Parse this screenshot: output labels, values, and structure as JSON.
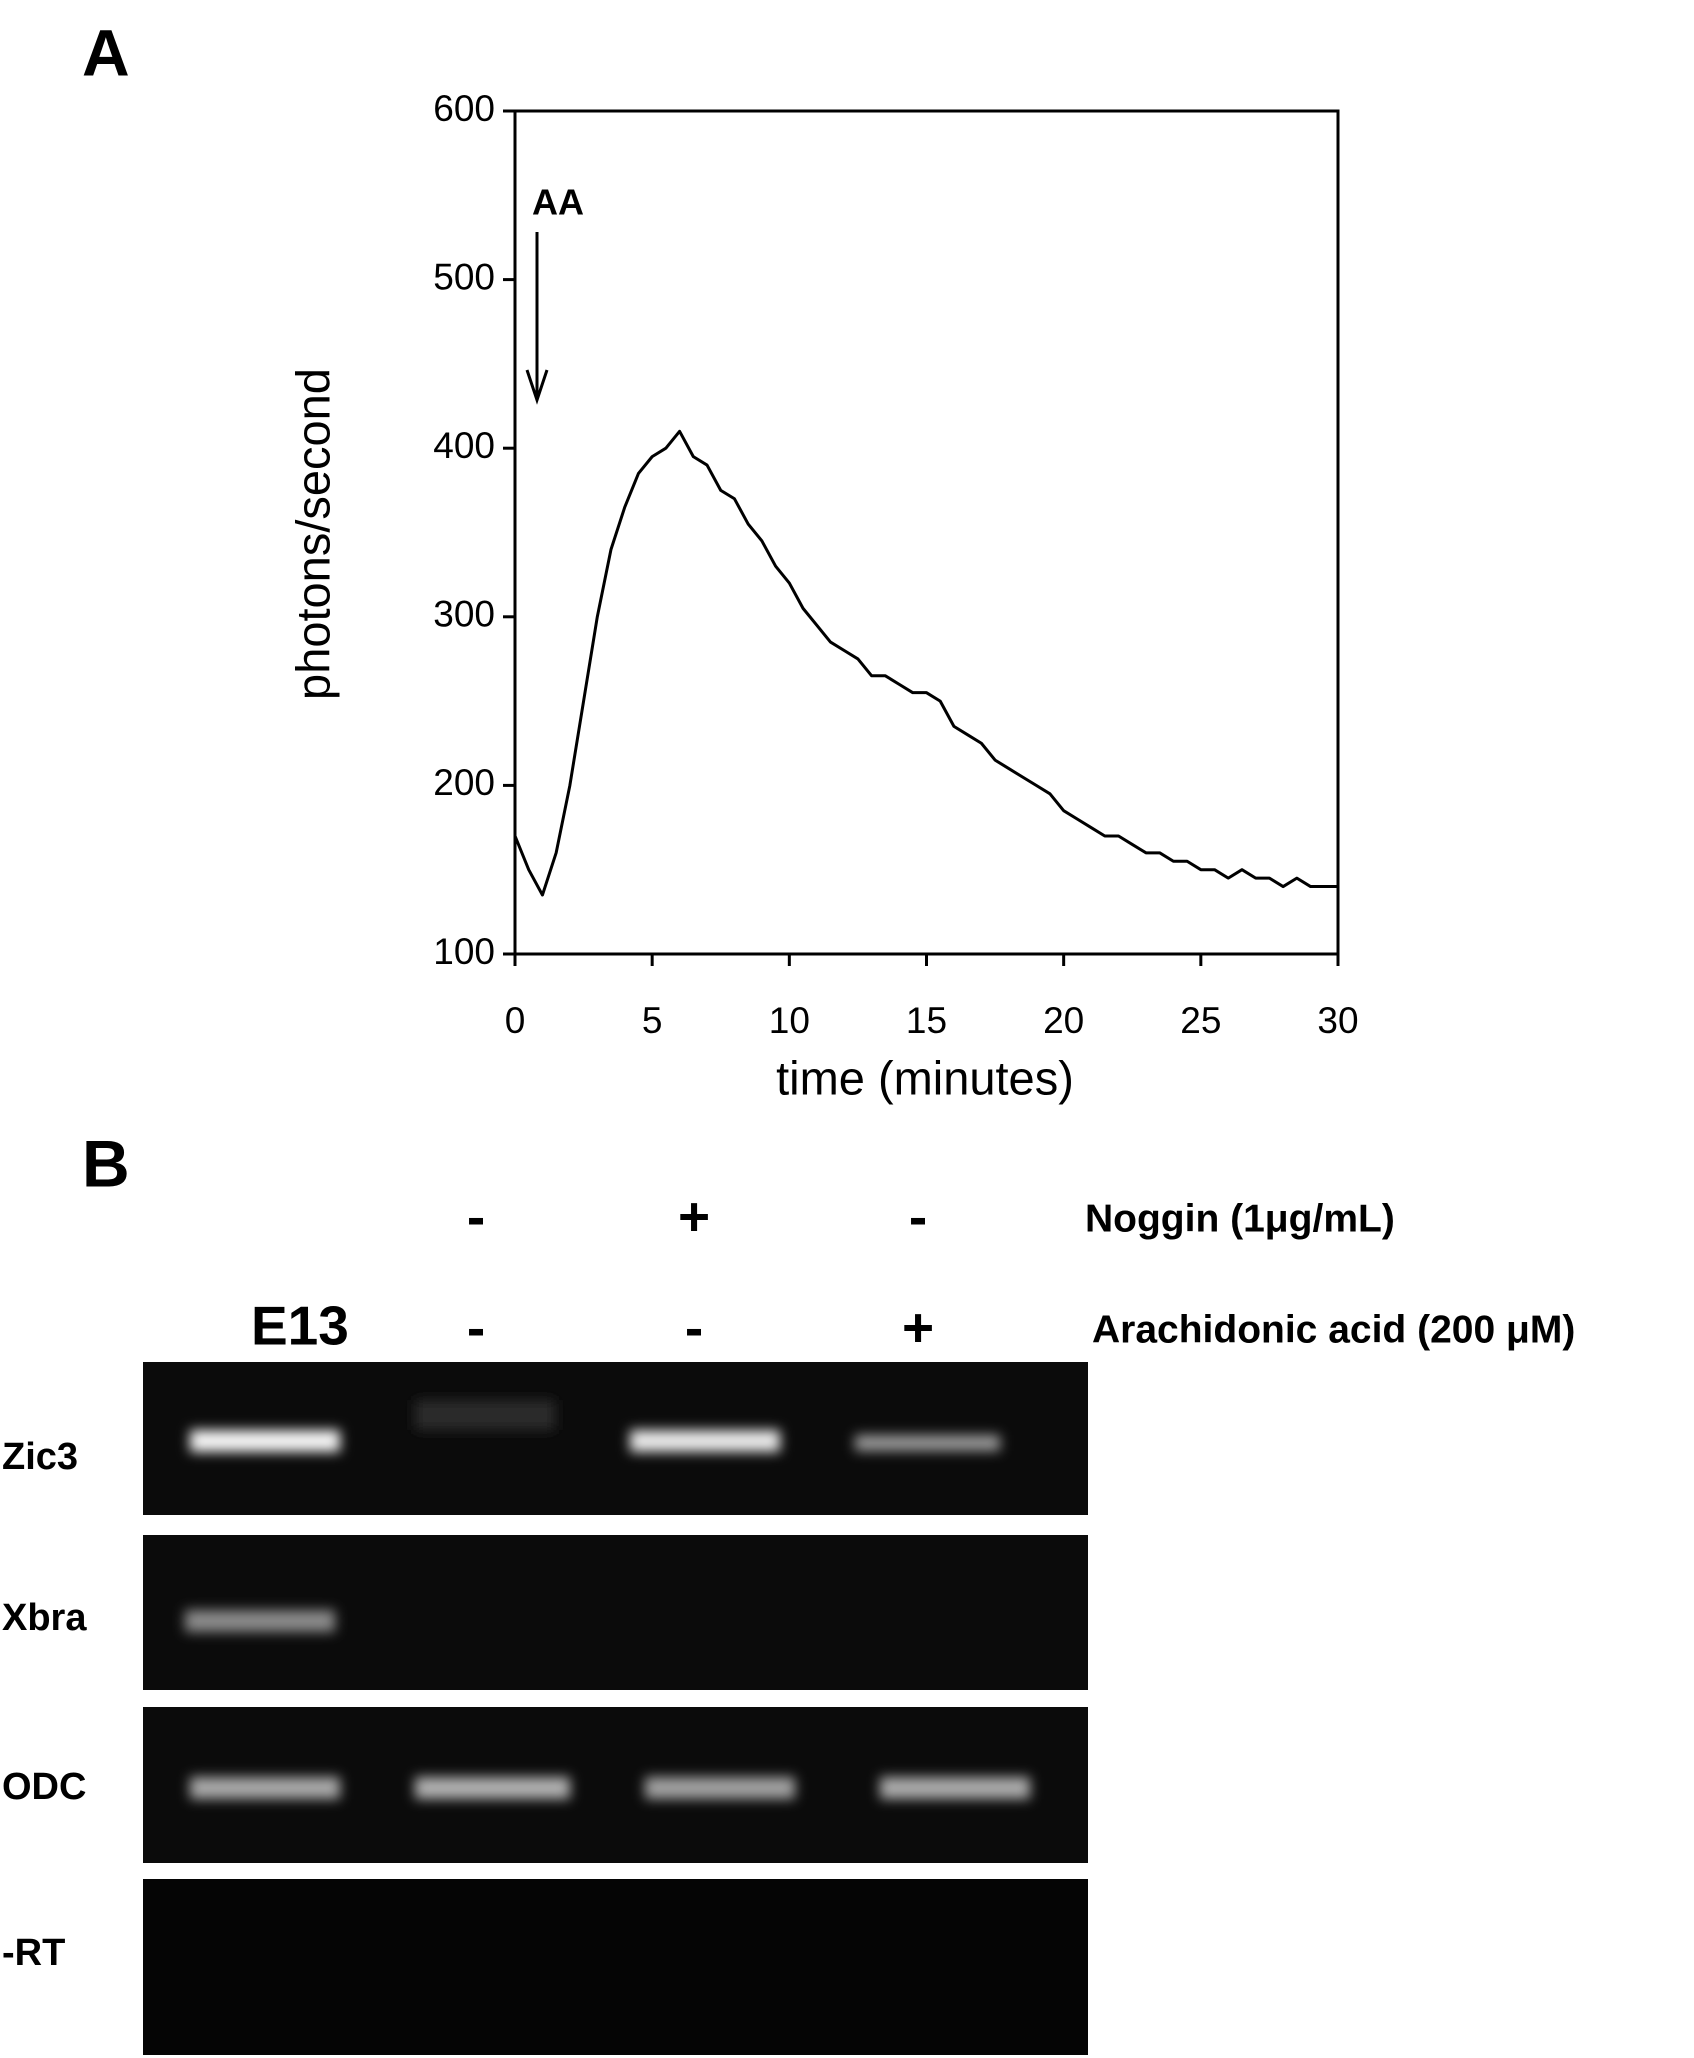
{
  "panels": {
    "a": "A",
    "b": "B"
  },
  "chart_data": {
    "type": "line",
    "x_label": "time (minutes)",
    "y_label": "photons/second",
    "annotation": "AA",
    "x": [
      0,
      0.5,
      1,
      1.5,
      2,
      2.5,
      3,
      3.5,
      4,
      4.5,
      5,
      5.5,
      6,
      6.5,
      7,
      7.5,
      8,
      8.5,
      9,
      9.5,
      10,
      10.5,
      11,
      11.5,
      12,
      12.5,
      13,
      13.5,
      14,
      14.5,
      15,
      15.5,
      16,
      16.5,
      17,
      17.5,
      18,
      18.5,
      19,
      19.5,
      20,
      20.5,
      21,
      21.5,
      22,
      22.5,
      23,
      23.5,
      24,
      24.5,
      25,
      25.5,
      26,
      26.5,
      27,
      27.5,
      28,
      28.5,
      29,
      29.5,
      30
    ],
    "values": [
      170,
      150,
      135,
      160,
      200,
      250,
      300,
      340,
      365,
      385,
      395,
      400,
      410,
      395,
      390,
      375,
      370,
      355,
      345,
      330,
      320,
      305,
      295,
      285,
      280,
      275,
      265,
      265,
      260,
      255,
      255,
      250,
      235,
      230,
      225,
      215,
      210,
      205,
      200,
      195,
      185,
      180,
      175,
      170,
      170,
      165,
      160,
      160,
      155,
      155,
      150,
      150,
      145,
      150,
      145,
      145,
      140,
      145,
      140,
      140,
      140
    ],
    "color": "#000000",
    "xlim": [
      0,
      30
    ],
    "ylim": [
      100,
      600
    ],
    "xticks": [
      0,
      5,
      10,
      15,
      20,
      25,
      30
    ],
    "yticks": [
      100,
      200,
      300,
      400,
      500,
      600
    ]
  },
  "gel": {
    "lane_header": "E13",
    "treatments": [
      {
        "label": "Noggin (1μg/mL)",
        "signs": [
          "-",
          "+",
          "-"
        ]
      },
      {
        "label": "Arachidonic acid (200 μM)",
        "signs": [
          "-",
          "-",
          "+"
        ]
      }
    ],
    "rows": [
      "Zic3",
      "Xbra",
      "ODC",
      "-RT"
    ]
  }
}
